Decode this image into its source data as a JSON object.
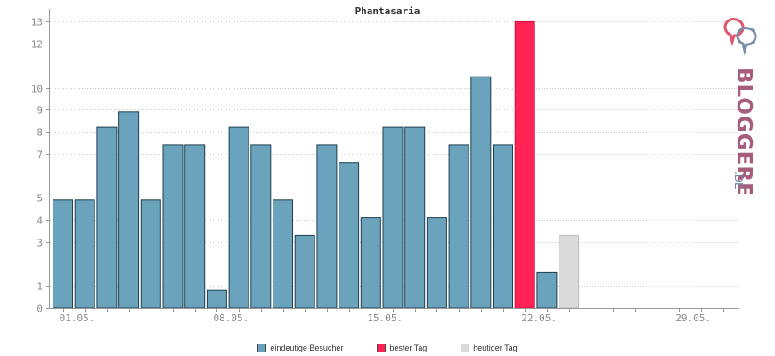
{
  "chart_data": {
    "type": "bar",
    "title": "Phantasaria",
    "xlabel": "",
    "ylabel": "",
    "ylim": [
      0,
      13.5
    ],
    "yticks": [
      0,
      1,
      3,
      4,
      5,
      7,
      8,
      9,
      10,
      12,
      13
    ],
    "xtick_labels": [
      {
        "label": "01.05.",
        "day": 1
      },
      {
        "label": "08.05.",
        "day": 8
      },
      {
        "label": "15.05.",
        "day": 15
      },
      {
        "label": "22.05.",
        "day": 22
      },
      {
        "label": "29.05.",
        "day": 29
      }
    ],
    "grid": true,
    "days_in_month": 31,
    "series": [
      {
        "name": "eindeutige Besucher",
        "color": "#6aa3bb"
      },
      {
        "name": "bester Tag",
        "color": "#ff2255"
      },
      {
        "name": "heutiger Tag",
        "color": "#dadada"
      }
    ],
    "bars": [
      {
        "day": 1,
        "value": 4.9,
        "series": 0
      },
      {
        "day": 2,
        "value": 4.9,
        "series": 0
      },
      {
        "day": 3,
        "value": 8.2,
        "series": 0
      },
      {
        "day": 4,
        "value": 8.9,
        "series": 0
      },
      {
        "day": 5,
        "value": 4.9,
        "series": 0
      },
      {
        "day": 6,
        "value": 7.4,
        "series": 0
      },
      {
        "day": 7,
        "value": 7.4,
        "series": 0
      },
      {
        "day": 8,
        "value": 0.8,
        "series": 0
      },
      {
        "day": 9,
        "value": 8.2,
        "series": 0
      },
      {
        "day": 10,
        "value": 7.4,
        "series": 0
      },
      {
        "day": 11,
        "value": 4.9,
        "series": 0
      },
      {
        "day": 12,
        "value": 3.3,
        "series": 0
      },
      {
        "day": 13,
        "value": 7.4,
        "series": 0
      },
      {
        "day": 14,
        "value": 6.6,
        "series": 0
      },
      {
        "day": 15,
        "value": 4.1,
        "series": 0
      },
      {
        "day": 16,
        "value": 8.2,
        "series": 0
      },
      {
        "day": 17,
        "value": 8.2,
        "series": 0
      },
      {
        "day": 18,
        "value": 4.1,
        "series": 0
      },
      {
        "day": 19,
        "value": 7.4,
        "series": 0
      },
      {
        "day": 20,
        "value": 10.5,
        "series": 0
      },
      {
        "day": 21,
        "value": 7.4,
        "series": 0
      },
      {
        "day": 22,
        "value": 13,
        "series": 1
      },
      {
        "day": 23,
        "value": 1.6,
        "series": 0
      },
      {
        "day": 24,
        "value": 3.3,
        "series": 2
      }
    ]
  },
  "logo": {
    "main": "BLOGGEREI",
    "suffix": ".DE"
  }
}
